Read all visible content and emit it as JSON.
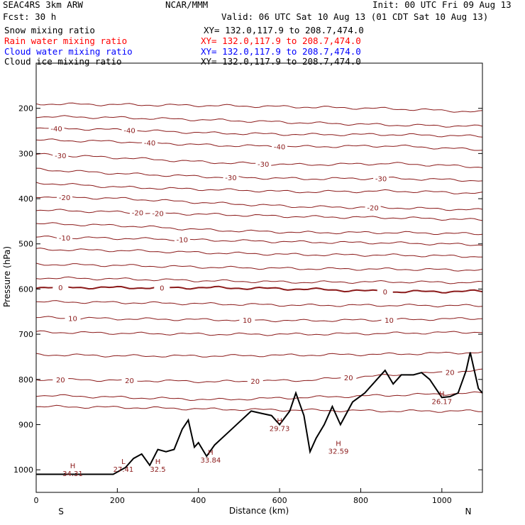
{
  "header": {
    "model": "SEAC4RS  3km ARW",
    "center": "NCAR/MMM",
    "init": "Init: 00 UTC Fri 09 Aug 13",
    "fcst": "Fcst:   30 h",
    "valid": "Valid: 06 UTC Sat 10 Aug 13 (01 CDT Sat 10 Aug 13)"
  },
  "fields": [
    {
      "name": "Snow mixing ratio",
      "xy": "XY= 132.0,117.9 to 208.7,474.0",
      "color": "#000000"
    },
    {
      "name": "Rain water mixing ratio",
      "xy": "XY= 132.0,117.9 to 208.7,474.0",
      "color": "#ff0000"
    },
    {
      "name": "Cloud water mixing ratio",
      "xy": "XY= 132.0,117.9 to 208.7,474.0",
      "color": "#0000ff"
    },
    {
      "name": "Cloud ice mixing ratio",
      "xy": "XY= 132.0,117.9 to 208.7,474.0",
      "color": "#000000"
    }
  ],
  "chart_data": {
    "type": "cross-section",
    "xlabel": "Distance (km)",
    "ylabel": "Pressure (hPa)",
    "xlim": [
      0,
      1100
    ],
    "ylim": [
      1050,
      100
    ],
    "x_ticks": [
      0,
      200,
      400,
      600,
      800,
      1000
    ],
    "y_ticks": [
      200,
      300,
      400,
      500,
      600,
      700,
      800,
      900,
      1000
    ],
    "x_end_labels": {
      "left": "S",
      "right": "N"
    },
    "isotherm_color": "#8b1a1a",
    "terrain_color": "#000000",
    "isotherms": [
      {
        "p": [
          190,
          192,
          194,
          197,
          201,
          208
        ]
      },
      {
        "p": [
          218,
          221,
          226,
          232,
          237,
          240
        ]
      },
      {
        "p": [
          243,
          248,
          255,
          258,
          258,
          262
        ],
        "label": "-40",
        "at": [
          50,
          230
        ]
      },
      {
        "p": [
          270,
          274,
          282,
          285,
          283,
          292
        ],
        "label": "-40",
        "at": [
          280,
          600
        ]
      },
      {
        "p": [
          302,
          310,
          320,
          325,
          322,
          330
        ],
        "label": "-30",
        "at": [
          60,
          560
        ]
      },
      {
        "p": [
          335,
          345,
          352,
          356,
          355,
          360
        ],
        "label": "-30",
        "at": [
          480,
          850
        ]
      },
      {
        "p": [
          365,
          375,
          380,
          385,
          383,
          388
        ]
      },
      {
        "p": [
          395,
          400,
          410,
          418,
          420,
          425
        ],
        "label": "-20",
        "at": [
          70,
          830
        ]
      },
      {
        "p": [
          425,
          430,
          435,
          440,
          442,
          447
        ],
        "label": "-20",
        "at": [
          250,
          300
        ]
      },
      {
        "p": [
          455,
          460,
          470,
          475,
          475,
          478
        ]
      },
      {
        "p": [
          485,
          488,
          492,
          496,
          498,
          502
        ],
        "label": "-10",
        "at": [
          70,
          360
        ]
      },
      {
        "p": [
          512,
          515,
          520,
          524,
          525,
          528
        ]
      },
      {
        "p": [
          545,
          548,
          552,
          555,
          556,
          558
        ]
      },
      {
        "p": [
          575,
          578,
          582,
          585,
          584,
          586
        ]
      },
      {
        "p": [
          596,
          597,
          597,
          600,
          606,
          605
        ],
        "label": "0",
        "at": [
          60,
          310,
          860
        ],
        "bold": true
      },
      {
        "p": [
          628,
          630,
          633,
          636,
          636,
          637
        ]
      },
      {
        "p": [
          663,
          666,
          668,
          670,
          668,
          665
        ],
        "label": "10",
        "at": [
          90,
          520,
          870
        ]
      },
      {
        "p": [
          695,
          698,
          700,
          700,
          698,
          695
        ]
      },
      {
        "p": [
          745,
          748,
          748,
          746,
          744,
          740
        ]
      },
      {
        "p": [
          800,
          802,
          805,
          802,
          790,
          780
        ],
        "label": "20",
        "at": [
          60,
          230,
          540,
          770,
          1020
        ]
      },
      {
        "p": [
          835,
          840,
          845,
          840,
          835,
          830
        ]
      },
      {
        "p": [
          860,
          862,
          866,
          868,
          870,
          870
        ]
      }
    ],
    "extrema": [
      {
        "type": "H",
        "value": "34.31",
        "x": 90,
        "p": 1000
      },
      {
        "type": "L",
        "value": "27.41",
        "x": 215,
        "p": 990
      },
      {
        "type": "H",
        "value": "32.5",
        "x": 300,
        "p": 990
      },
      {
        "type": "H",
        "value": "33.84",
        "x": 430,
        "p": 970
      },
      {
        "type": "H",
        "value": "29.73",
        "x": 600,
        "p": 900
      },
      {
        "type": "H",
        "value": "32.59",
        "x": 745,
        "p": 950
      },
      {
        "type": "H",
        "value": "26.17",
        "x": 1000,
        "p": 840
      }
    ],
    "terrain": {
      "x": [
        0,
        190,
        220,
        240,
        260,
        280,
        300,
        320,
        340,
        360,
        375,
        390,
        400,
        420,
        440,
        470,
        500,
        530,
        555,
        580,
        600,
        625,
        640,
        660,
        675,
        690,
        710,
        730,
        750,
        780,
        810,
        840,
        860,
        880,
        900,
        930,
        950,
        970,
        1000,
        1020,
        1040,
        1060,
        1070,
        1090,
        1100
      ],
      "p": [
        1010,
        1010,
        995,
        975,
        965,
        990,
        955,
        960,
        955,
        910,
        890,
        950,
        940,
        970,
        945,
        920,
        895,
        870,
        875,
        880,
        900,
        870,
        830,
        880,
        960,
        930,
        900,
        860,
        900,
        850,
        830,
        800,
        780,
        810,
        790,
        790,
        785,
        800,
        840,
        838,
        830,
        780,
        740,
        820,
        830
      ]
    }
  }
}
